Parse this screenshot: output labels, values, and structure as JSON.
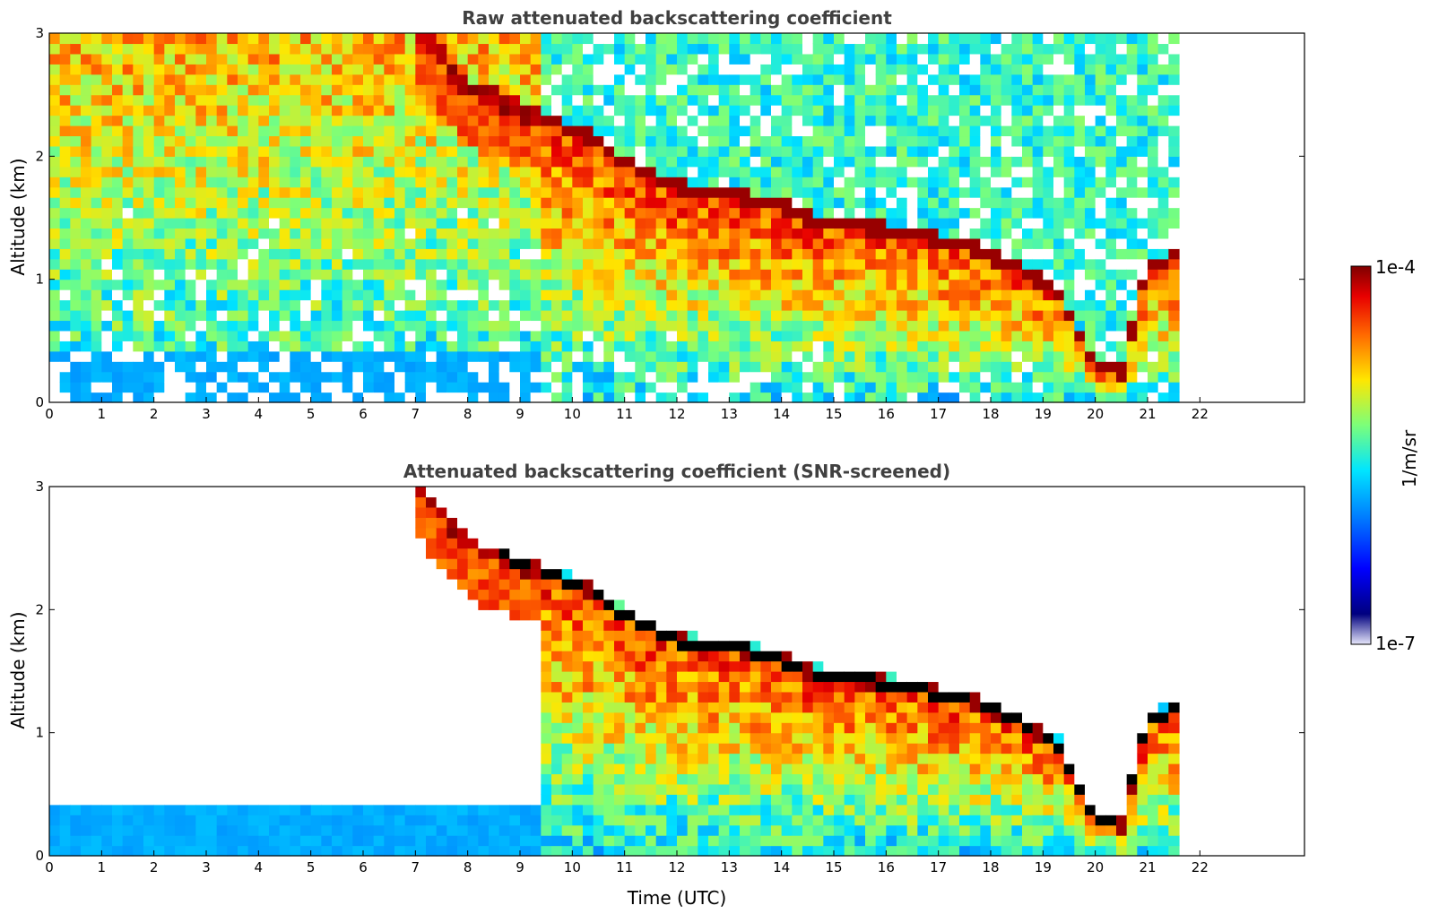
{
  "colors": {
    "colormap": "jet",
    "palette": [
      "#00007f",
      "#0000ff",
      "#0080ff",
      "#00e5ff",
      "#7cff79",
      "#ffe600",
      "#ff6800",
      "#e80000",
      "#7f0000"
    ],
    "missing": "#ffffff",
    "cloud_top_screened": "#000000"
  },
  "colorbar": {
    "label": "1/m/sr",
    "max_label": "1e-4",
    "min_label": "1e-7",
    "scale": "log",
    "range": [
      1e-07,
      0.0001
    ]
  },
  "chart_data": [
    {
      "type": "heatmap",
      "title": "Raw attenuated backscattering coefficient",
      "xlabel": "",
      "ylabel": "Altitude (km)",
      "xlim": [
        0,
        24
      ],
      "ylim": [
        0,
        3
      ],
      "xticks": [
        "0",
        "1",
        "2",
        "3",
        "4",
        "5",
        "6",
        "7",
        "8",
        "9",
        "10",
        "11",
        "12",
        "13",
        "14",
        "15",
        "16",
        "17",
        "18",
        "19",
        "20",
        "21",
        "22"
      ],
      "yticks": [
        "0",
        "1",
        "2",
        "3"
      ],
      "data_end_time": 21.6,
      "screened": false,
      "value_range": [
        1e-07,
        0.0001
      ],
      "cloud_layer": {
        "time": [
          7.1,
          7.7,
          8.2,
          8.6,
          9.5,
          10.4,
          11.0,
          12.0,
          13.0,
          14.0,
          14.5,
          15.2,
          16.2,
          17.2,
          17.7,
          18.5,
          19.3,
          20.0,
          20.5,
          21.0,
          21.6
        ],
        "altitude_km": [
          3.0,
          2.7,
          2.5,
          2.45,
          2.3,
          2.15,
          1.95,
          1.75,
          1.7,
          1.6,
          1.5,
          1.45,
          1.4,
          1.3,
          1.25,
          1.1,
          0.9,
          0.3,
          0.25,
          1.1,
          1.2
        ]
      }
    },
    {
      "type": "heatmap",
      "title": "Attenuated backscattering coefficient (SNR-screened)",
      "xlabel": "Time (UTC)",
      "ylabel": "Altitude (km)",
      "xlim": [
        0,
        24
      ],
      "ylim": [
        0,
        3
      ],
      "xticks": [
        "0",
        "1",
        "2",
        "3",
        "4",
        "5",
        "6",
        "7",
        "8",
        "9",
        "10",
        "11",
        "12",
        "13",
        "14",
        "15",
        "16",
        "17",
        "18",
        "19",
        "20",
        "21",
        "22"
      ],
      "yticks": [
        "0",
        "1",
        "2",
        "3"
      ],
      "data_end_time": 21.6,
      "screened": true,
      "value_range": [
        1e-07,
        0.0001
      ],
      "cloud_layer": {
        "time": [
          7.1,
          7.7,
          8.2,
          8.6,
          9.5,
          10.4,
          11.0,
          12.0,
          13.0,
          14.0,
          14.5,
          15.2,
          16.2,
          17.2,
          17.7,
          18.5,
          19.3,
          20.0,
          20.5,
          21.0,
          21.6
        ],
        "altitude_km": [
          3.0,
          2.7,
          2.5,
          2.45,
          2.3,
          2.15,
          1.95,
          1.75,
          1.7,
          1.6,
          1.5,
          1.45,
          1.4,
          1.3,
          1.25,
          1.1,
          0.9,
          0.3,
          0.25,
          1.1,
          1.2
        ]
      }
    }
  ]
}
